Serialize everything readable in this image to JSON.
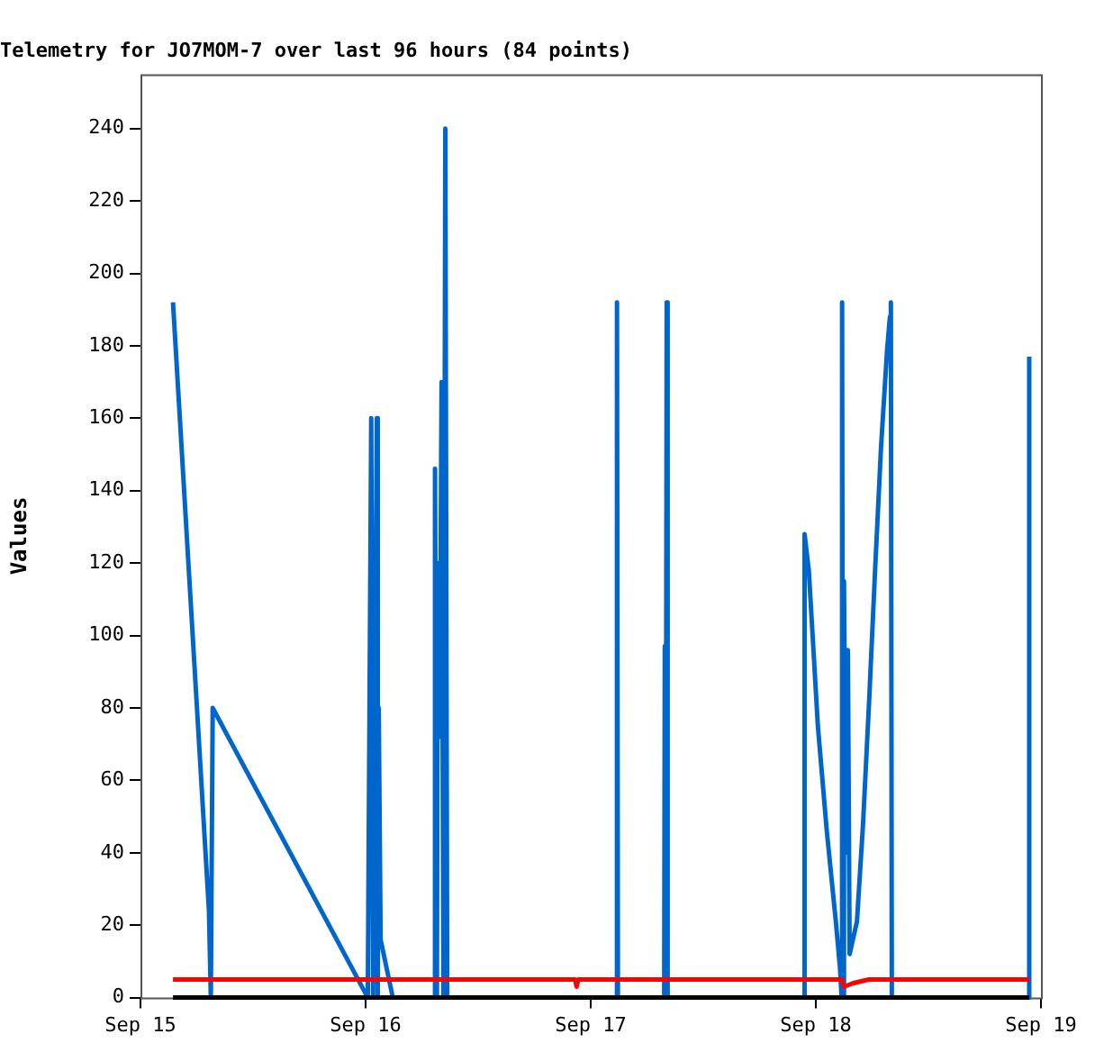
{
  "chart_data": {
    "type": "line",
    "title": "Telemetry for JO7MOM-7 over last 96 hours (84 points)",
    "ylabel": "Values",
    "xlim": [
      "--09-15",
      "--09-19"
    ],
    "xticks": [
      {
        "value": "--09-15",
        "label": "Sep 15"
      },
      {
        "value": "--09-16",
        "label": "Sep 16"
      },
      {
        "value": "--09-17",
        "label": "Sep 17"
      },
      {
        "value": "--09-18",
        "label": "Sep 18"
      },
      {
        "value": "--09-19",
        "label": "Sep 19"
      }
    ],
    "ylim": [
      0,
      255
    ],
    "yticks": [
      0,
      20,
      40,
      60,
      80,
      100,
      120,
      140,
      160,
      180,
      200,
      220,
      240
    ],
    "grid": false,
    "legend": false,
    "marker": "none",
    "line_style": "solid",
    "series": [
      {
        "color": "#0066cc",
        "x": [
          "--09-15T03:28",
          "--09-15T07:18",
          "--09-15T07:30",
          "--09-15T07:42",
          "--09-16T00:14",
          "--09-16T00:36",
          "--09-16T00:48",
          "--09-16T01:12",
          "--09-16T01:18",
          "--09-16T01:24",
          "--09-16T01:36",
          "--09-16T02:54",
          "--09-16T07:18",
          "--09-16T07:24",
          "--09-16T07:36",
          "--09-16T07:42",
          "--09-16T07:54",
          "--09-16T08:06",
          "--09-16T08:18",
          "--09-16T08:30",
          "--09-16T08:42",
          "--09-17T02:44",
          "--09-17T02:48",
          "--09-17T02:54",
          "--09-17T07:50",
          "--09-17T07:54",
          "--09-17T08:00",
          "--09-17T08:06",
          "--09-17T08:12",
          "--09-17T22:44",
          "--09-17T22:48",
          "--09-17T23:15",
          "--09-18T00:13",
          "--09-18T01:10",
          "--09-18T02:08",
          "--09-18T02:35",
          "--09-18T02:45",
          "--09-18T02:48",
          "--09-18T02:54",
          "--09-18T03:00",
          "--09-18T03:13",
          "--09-18T03:25",
          "--09-18T03:36",
          "--09-18T04:23",
          "--09-18T05:02",
          "--09-18T05:41",
          "--09-18T06:19",
          "--09-18T06:57",
          "--09-18T07:36",
          "--09-18T07:54",
          "--09-18T08:00",
          "--09-18T08:06",
          "--09-18T22:40",
          "--09-18T22:45"
        ],
        "values": [
          192,
          24,
          0,
          80,
          0,
          160,
          0,
          160,
          0,
          80,
          16,
          0,
          0,
          146,
          0,
          120,
          72,
          170,
          0,
          240,
          0,
          0,
          192,
          0,
          0,
          97,
          0,
          192,
          0,
          0,
          128,
          118,
          75,
          46,
          21,
          8,
          0,
          192,
          0,
          115,
          40,
          96,
          12,
          21,
          48,
          82,
          118,
          152,
          179,
          188,
          192,
          0,
          0,
          177
        ]
      },
      {
        "color": "#ff0000",
        "x": [
          "--09-15T03:28",
          "--09-16T22:20",
          "--09-16T22:30",
          "--09-16T22:40",
          "--09-18T02:45",
          "--09-18T03:00",
          "--09-18T04:00",
          "--09-18T05:40",
          "--09-18T22:45"
        ],
        "values": [
          5,
          5,
          3,
          5,
          5,
          3,
          4,
          5,
          5
        ]
      },
      {
        "color": "#000000",
        "x": [
          "--09-15T03:28",
          "--09-18T22:45"
        ],
        "values": [
          0,
          0
        ]
      }
    ]
  }
}
